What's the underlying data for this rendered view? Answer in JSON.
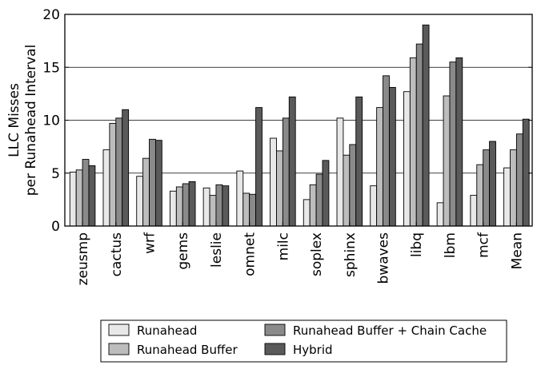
{
  "chart_data": {
    "type": "bar",
    "ylabel_line1": "LLC Misses",
    "ylabel_line2": "per Runahead Interval",
    "ylim": [
      0,
      20
    ],
    "yticks": [
      0,
      5,
      10,
      15,
      20
    ],
    "grid": "horizontal",
    "legend_position": "bottom",
    "categories": [
      "zeusmp",
      "cactus",
      "wrf",
      "gems",
      "leslie",
      "omnet",
      "milc",
      "soplex",
      "sphinx",
      "bwaves",
      "libq",
      "lbm",
      "mcf",
      "Mean"
    ],
    "series": [
      {
        "name": "Runahead",
        "color": "#e8e8e8",
        "values": [
          5.1,
          7.2,
          4.7,
          3.3,
          3.6,
          5.2,
          8.3,
          2.5,
          10.2,
          3.8,
          12.7,
          2.2,
          2.9,
          5.5
        ]
      },
      {
        "name": "Runahead Buffer",
        "color": "#bdbdbd",
        "values": [
          5.3,
          9.7,
          6.4,
          3.7,
          2.9,
          3.1,
          7.1,
          3.9,
          6.7,
          11.2,
          15.9,
          12.3,
          5.8,
          7.2
        ]
      },
      {
        "name": "Runahead Buffer + Chain Cache",
        "color": "#8a8a8a",
        "values": [
          6.3,
          10.2,
          8.2,
          4.0,
          3.9,
          3.0,
          10.2,
          4.9,
          7.7,
          14.2,
          17.2,
          15.5,
          7.2,
          8.7
        ]
      },
      {
        "name": "Hybrid",
        "color": "#5a5a5a",
        "values": [
          5.7,
          11.0,
          8.1,
          4.2,
          3.8,
          11.2,
          12.2,
          6.2,
          12.2,
          13.1,
          19.0,
          15.9,
          8.0,
          10.1
        ]
      }
    ]
  }
}
